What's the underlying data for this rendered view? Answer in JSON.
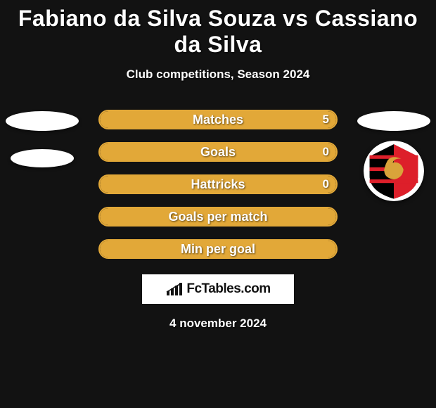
{
  "title": "Fabiano da Silva Souza vs Cassiano da Silva",
  "subtitle": "Club competitions, Season 2024",
  "date": "4 november 2024",
  "brand": "FcTables.com",
  "colors": {
    "background": "#121212",
    "bar_fill": "#e2a838",
    "bar_border": "#e2a838",
    "text": "#ffffff",
    "logo_bg": "#ffffff",
    "logo_text": "#111111"
  },
  "left_player": {
    "avatar_shape": "oval",
    "ovals": 2
  },
  "right_player": {
    "avatar_shape": "oval_then_badge",
    "badge_colors": {
      "outer": "#000000",
      "red": "#dd1f2a",
      "gold": "#d9a33a"
    }
  },
  "stats": [
    {
      "label": "Matches",
      "right_value": "5",
      "fill_pct": 100
    },
    {
      "label": "Goals",
      "right_value": "0",
      "fill_pct": 100
    },
    {
      "label": "Hattricks",
      "right_value": "0",
      "fill_pct": 100
    },
    {
      "label": "Goals per match",
      "right_value": "",
      "fill_pct": 100
    },
    {
      "label": "Min per goal",
      "right_value": "",
      "fill_pct": 100
    }
  ]
}
